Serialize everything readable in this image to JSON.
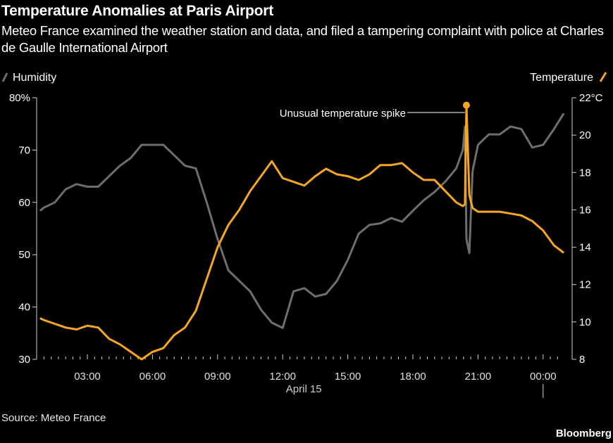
{
  "title": "Temperature Anomalies at Paris Airport",
  "subtitle": "Meteo France examined the weather station and data, and filed a tampering complaint with police at Charles de Gaulle International Airport",
  "source": "Source: Meteo France",
  "brand": "Bloomberg",
  "chart_data": {
    "type": "line",
    "title": "Temperature Anomalies at Paris Airport",
    "x_ticks": [
      "03:00",
      "06:00",
      "09:00",
      "12:00",
      "15:00",
      "18:00",
      "21:00",
      "00:00"
    ],
    "x_date_label": "April 15",
    "left_axis": {
      "ticks": [
        "80%",
        "70",
        "60",
        "50",
        "40",
        "30"
      ],
      "tick_values": [
        80,
        70,
        60,
        50,
        40,
        30
      ],
      "ylim": [
        30,
        80
      ],
      "unit": "%"
    },
    "right_axis": {
      "ticks": [
        "22°C",
        "20",
        "18",
        "16",
        "14",
        "12",
        "10",
        "8"
      ],
      "tick_values": [
        22,
        20,
        18,
        16,
        14,
        12,
        10,
        8
      ],
      "ylim": [
        8,
        22
      ],
      "unit": "°C"
    },
    "grid": false,
    "legend": [
      {
        "name": "Humidity",
        "position": "top-left",
        "color": "#6e6e6e"
      },
      {
        "name": "Temperature",
        "position": "top-right",
        "color": "#f5a623"
      }
    ],
    "annotation": {
      "text": "Unusual temperature spike",
      "x": "Apr 15 20:28",
      "y": 21.6
    },
    "x": [
      "Apr 15 00:49",
      "Apr 15 01:00",
      "Apr 15 01:30",
      "Apr 15 02:00",
      "Apr 15 02:30",
      "Apr 15 03:00",
      "Apr 15 03:30",
      "Apr 15 04:00",
      "Apr 15 04:30",
      "Apr 15 05:00",
      "Apr 15 05:30",
      "Apr 15 06:00",
      "Apr 15 06:30",
      "Apr 15 07:00",
      "Apr 15 07:30",
      "Apr 15 08:00",
      "Apr 15 08:30",
      "Apr 15 09:00",
      "Apr 15 09:30",
      "Apr 15 10:00",
      "Apr 15 10:30",
      "Apr 15 11:00",
      "Apr 15 11:30",
      "Apr 15 12:00",
      "Apr 15 12:30",
      "Apr 15 13:00",
      "Apr 15 13:30",
      "Apr 15 14:00",
      "Apr 15 14:30",
      "Apr 15 15:00",
      "Apr 15 15:30",
      "Apr 15 16:00",
      "Apr 15 16:30",
      "Apr 15 17:00",
      "Apr 15 17:30",
      "Apr 15 18:00",
      "Apr 15 18:30",
      "Apr 15 19:00",
      "Apr 15 19:30",
      "Apr 15 20:00",
      "Apr 15 20:18",
      "Apr 15 20:24",
      "Apr 15 20:28",
      "Apr 15 20:36",
      "Apr 15 20:45",
      "Apr 15 21:00",
      "Apr 15 21:30",
      "Apr 15 22:00",
      "Apr 15 22:30",
      "Apr 15 23:00",
      "Apr 15 23:30",
      "Apr 16 00:00",
      "Apr 16 00:30",
      "Apr 16 00:57"
    ],
    "series": [
      {
        "name": "Humidity",
        "axis": "left",
        "color": "#6e6e6e",
        "values": [
          58.4,
          59,
          60,
          62.5,
          63.5,
          63,
          63,
          65,
          67,
          68.5,
          71,
          71,
          71,
          69,
          67,
          66.5,
          60,
          53,
          47,
          45,
          43,
          39.5,
          37,
          36,
          43,
          43.6,
          42,
          42.5,
          45,
          49,
          54,
          55.7,
          56,
          57,
          56.3,
          58.4,
          60.4,
          62,
          64,
          66.5,
          70,
          74.5,
          53,
          50.3,
          66,
          71,
          73,
          73,
          74.5,
          74,
          70.5,
          71,
          74,
          77
        ]
      },
      {
        "name": "Temperature",
        "axis": "right",
        "color": "#f5a623",
        "values": [
          10.2,
          10.1,
          9.9,
          9.7,
          9.6,
          9.8,
          9.7,
          9.1,
          8.8,
          8.4,
          8.0,
          8.4,
          8.6,
          9.3,
          9.7,
          10.6,
          12.3,
          14.0,
          15.2,
          16.0,
          17.0,
          17.8,
          18.6,
          17.7,
          17.5,
          17.3,
          17.8,
          18.2,
          17.9,
          17.8,
          17.6,
          17.9,
          18.4,
          18.4,
          18.5,
          18.0,
          17.6,
          17.6,
          17.0,
          16.4,
          16.2,
          16.3,
          21.6,
          16.8,
          16.1,
          15.9,
          15.9,
          15.9,
          15.8,
          15.7,
          15.4,
          14.9,
          14.1,
          13.7
        ]
      }
    ]
  }
}
